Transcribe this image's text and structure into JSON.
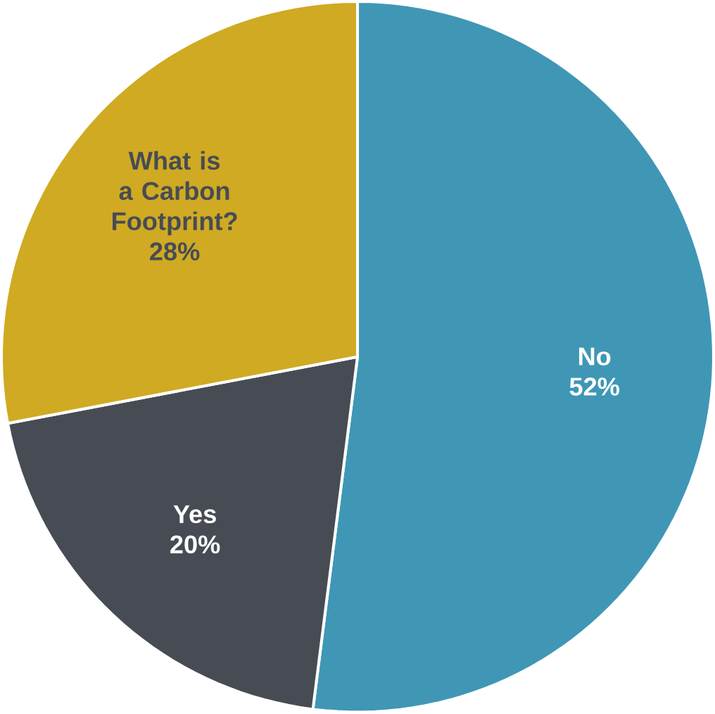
{
  "chart_data": {
    "type": "pie",
    "categories": [
      "No",
      "Yes",
      "What is a Carbon Footprint?"
    ],
    "values": [
      52,
      20,
      28
    ],
    "value_labels": [
      "52%",
      "20%",
      "28%"
    ],
    "colors": [
      "#3f97b5",
      "#474c54",
      "#cfaa22"
    ]
  }
}
